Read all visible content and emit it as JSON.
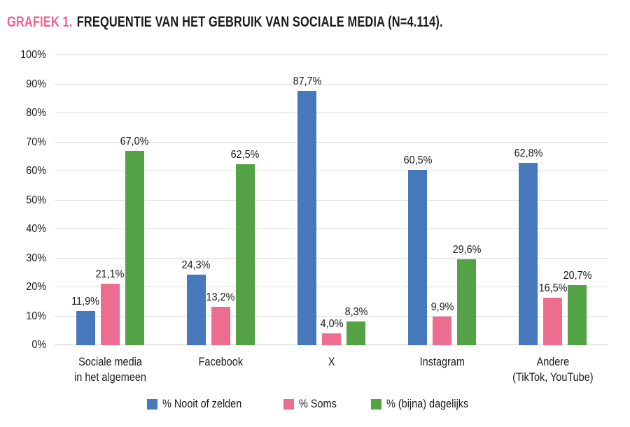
{
  "title": {
    "tag": "GRAFIEK 1.",
    "text": "FREQUENTIE VAN HET GEBRUIK VAN SOCIALE MEDIA (N=4.114)."
  },
  "colors": {
    "title_tag": "#F2608E",
    "grid": "#DCDCDC",
    "baseline": "#C9C9C9",
    "text": "#1A1A1A",
    "blue": "#4678BC",
    "pink": "#EC6D90",
    "green": "#53A346"
  },
  "chart_data": {
    "type": "bar",
    "title": "GRAFIEK 1. FREQUENTIE VAN HET GEBRUIK VAN SOCIALE MEDIA (N=4.114).",
    "categories": [
      [
        "Sociale media",
        "in het algemeen"
      ],
      [
        "Facebook"
      ],
      [
        "X"
      ],
      [
        "Instagram"
      ],
      [
        "Andere",
        "(TikTok, YouTube)"
      ]
    ],
    "series": [
      {
        "name": "% Nooit of zelden",
        "color": "#4678BC",
        "values": [
          11.9,
          24.3,
          87.7,
          60.5,
          62.8
        ],
        "labels": [
          "11,9%",
          "24,3%",
          "87,7%",
          "60,5%",
          "62,8%"
        ]
      },
      {
        "name": "% Soms",
        "color": "#EC6D90",
        "values": [
          21.1,
          13.2,
          4.0,
          9.9,
          16.5
        ],
        "labels": [
          "21,1%",
          "13,2%",
          "4,0%",
          "9,9%",
          "16,5%"
        ]
      },
      {
        "name": "% (bijna) dagelijks",
        "color": "#53A346",
        "values": [
          67.0,
          62.5,
          8.3,
          29.6,
          20.7
        ],
        "labels": [
          "67,0%",
          "62,5%",
          "8,3%",
          "29,6%",
          "20,7%"
        ]
      }
    ],
    "y_ticks": [
      "0%",
      "10%",
      "20%",
      "30%",
      "40%",
      "50%",
      "60%",
      "70%",
      "80%",
      "90%",
      "100%"
    ],
    "ylim": [
      0,
      100
    ],
    "grid": "horizontal",
    "legend_position": "bottom"
  }
}
